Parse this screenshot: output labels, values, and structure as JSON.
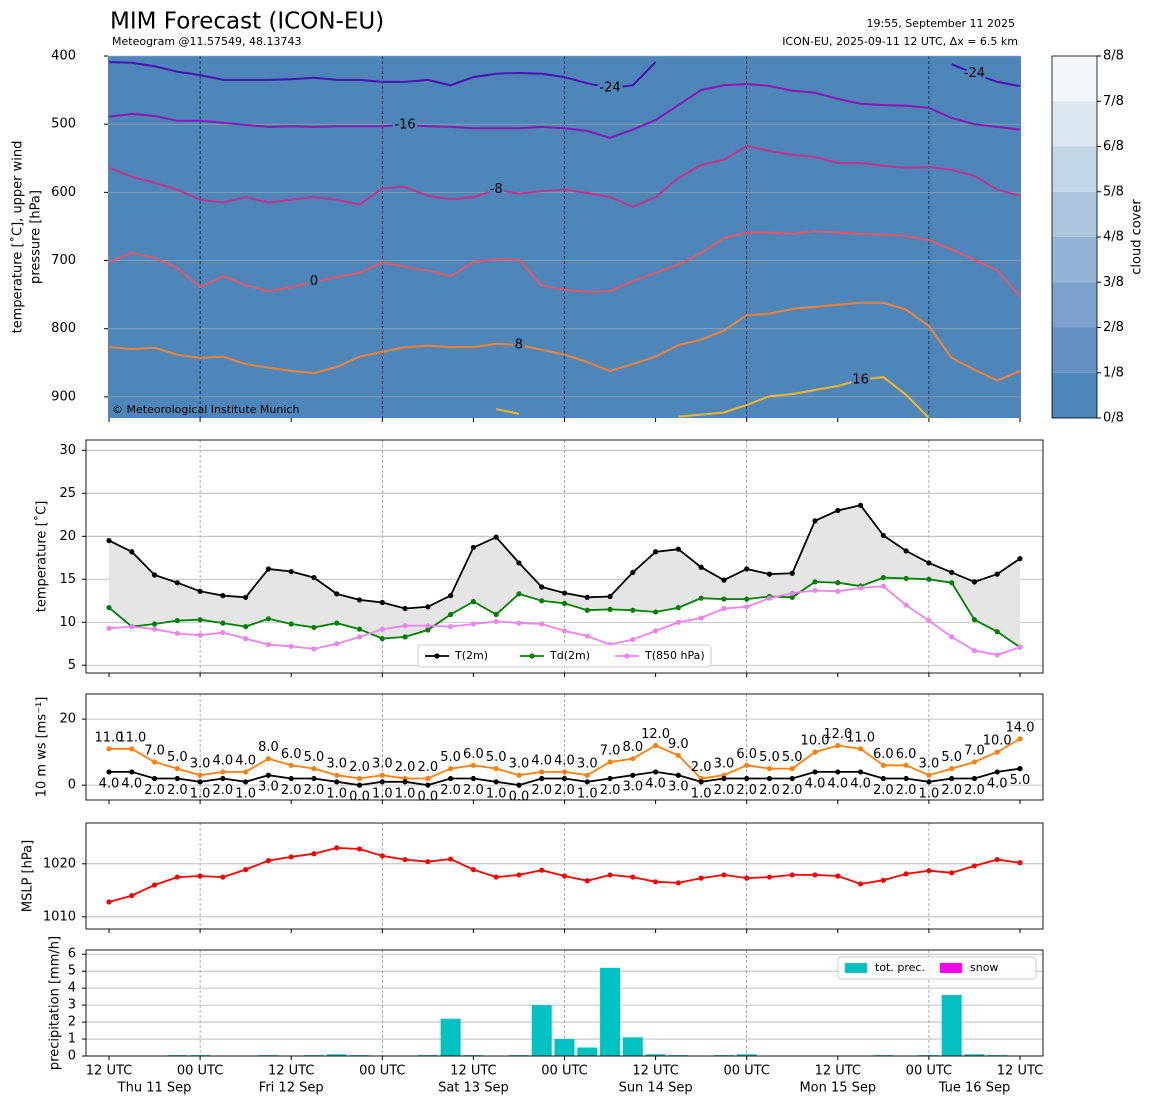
{
  "chart_data": [
    {
      "type": "contour",
      "title": "MIM Forecast (ICON-EU)",
      "subtitle": "Meteogram @11.57549, 48.13743",
      "annotations": [
        "19:55, September 11 2025",
        "ICON-EU, 2025-09-11 12 UTC, Δx = 6.5 km",
        "© Meteorological Institute Munich"
      ],
      "ylabel": [
        "temperature [˚C], upper wind",
        "pressure [hPa]"
      ],
      "ylim": [
        931,
        400
      ],
      "yticks": [
        400,
        500,
        600,
        700,
        800,
        900
      ],
      "grid": true,
      "background": "#4e86ba",
      "series": [
        {
          "name": "-24",
          "color": "#4b0fb4",
          "values": [
            409,
            410,
            415,
            423,
            428,
            435,
            435,
            435,
            434,
            432,
            435,
            435,
            438,
            438,
            435,
            443,
            431,
            426,
            425,
            426,
            431,
            440,
            447,
            443,
            409,
            null,
            null,
            null,
            null,
            null,
            null,
            null,
            null,
            null,
            null,
            null,
            null,
            412,
            426,
            438,
            444
          ]
        },
        {
          "name": "-16",
          "color": "#8a18b4",
          "values": [
            489,
            485,
            488,
            495,
            495,
            498,
            501,
            504,
            503,
            504,
            503,
            503,
            503,
            501,
            503,
            504,
            506,
            506,
            506,
            504,
            506,
            510,
            520,
            508,
            494,
            472,
            450,
            443,
            441,
            444,
            451,
            454,
            463,
            470,
            472,
            473,
            476,
            491,
            500,
            504,
            508
          ]
        },
        {
          "name": "-8",
          "color": "#c2338f",
          "values": [
            564,
            577,
            586,
            596,
            611,
            615,
            607,
            615,
            611,
            607,
            611,
            618,
            594,
            592,
            605,
            610,
            607,
            596,
            602,
            598,
            596,
            601,
            607,
            621,
            607,
            579,
            560,
            552,
            532,
            539,
            545,
            548,
            557,
            557,
            561,
            564,
            563,
            567,
            576,
            596,
            605
          ]
        },
        {
          "name": "0",
          "color": "#e2586a",
          "values": [
            702,
            689,
            696,
            711,
            739,
            723,
            736,
            745,
            739,
            731,
            724,
            718,
            703,
            709,
            715,
            723,
            702,
            698,
            699,
            737,
            743,
            746,
            745,
            730,
            718,
            706,
            689,
            667,
            659,
            659,
            661,
            657,
            659,
            661,
            662,
            664,
            670,
            684,
            699,
            714,
            753
          ]
        },
        {
          "name": "8",
          "color": "#f08238",
          "values": [
            827,
            830,
            828,
            838,
            843,
            841,
            852,
            857,
            862,
            865,
            856,
            841,
            834,
            827,
            825,
            827,
            827,
            822,
            824,
            831,
            838,
            849,
            862,
            852,
            841,
            824,
            816,
            803,
            780,
            778,
            771,
            768,
            765,
            762,
            762,
            772,
            796,
            843,
            860,
            876,
            862
          ]
        },
        {
          "name": "16",
          "color": "#f4b624",
          "values": [
            null,
            null,
            null,
            null,
            null,
            null,
            null,
            null,
            null,
            null,
            null,
            null,
            null,
            null,
            null,
            null,
            null,
            918,
            925,
            null,
            null,
            null,
            null,
            null,
            null,
            929,
            926,
            923,
            912,
            899,
            896,
            890,
            884,
            875,
            871,
            897,
            931,
            null,
            null,
            null,
            null
          ]
        }
      ],
      "colorbar": {
        "label": "cloud cover",
        "ticks": [
          {
            "value": 0,
            "label": "0/8"
          },
          {
            "value": 1,
            "label": "1/8"
          },
          {
            "value": 2,
            "label": "2/8"
          },
          {
            "value": 3,
            "label": "3/8"
          },
          {
            "value": 4,
            "label": "4/8"
          },
          {
            "value": 5,
            "label": "5/8"
          },
          {
            "value": 6,
            "label": "6/8"
          },
          {
            "value": 7,
            "label": "7/8"
          },
          {
            "value": 8,
            "label": "8/8"
          }
        ],
        "colors": [
          "#4e86ba",
          "#6290c0",
          "#7aa2ca",
          "#93b4d4",
          "#abc5dd",
          "#c3d6e6",
          "#dbe6ef",
          "#f1f6fa"
        ]
      }
    },
    {
      "type": "line",
      "ylabel": "temperature [˚C]",
      "ylim": [
        4.1,
        31.2
      ],
      "yticks": [
        5,
        10,
        15,
        20,
        25,
        30
      ],
      "grid": true,
      "legend": "lower center",
      "fill_color": "#e5e5e5",
      "series": [
        {
          "name": "T(2m)",
          "color": "#000000",
          "values": [
            19.5,
            18.2,
            15.5,
            14.6,
            13.6,
            13.1,
            12.9,
            16.2,
            15.9,
            15.2,
            13.3,
            12.6,
            12.3,
            11.6,
            11.8,
            13.1,
            18.7,
            19.9,
            16.9,
            14.1,
            13.4,
            12.9,
            13.0,
            15.8,
            18.2,
            18.5,
            16.4,
            14.9,
            16.2,
            15.6,
            15.7,
            21.8,
            23.0,
            23.6,
            20.1,
            18.3,
            16.9,
            15.8,
            14.7,
            15.6,
            17.4
          ]
        },
        {
          "name": "Td(2m)",
          "color": "#008000",
          "values": [
            11.7,
            9.5,
            9.8,
            10.2,
            10.3,
            9.9,
            9.5,
            10.4,
            9.8,
            9.4,
            9.9,
            9.2,
            8.1,
            8.3,
            9.1,
            10.9,
            12.4,
            10.9,
            13.3,
            12.5,
            12.2,
            11.4,
            11.5,
            11.4,
            11.2,
            11.7,
            12.8,
            12.7,
            12.7,
            13.0,
            12.9,
            14.7,
            14.6,
            14.2,
            15.2,
            15.1,
            15.0,
            14.6,
            10.3,
            8.9,
            7.1
          ]
        },
        {
          "name": "T(850 hPa)",
          "color": "#ee82ee",
          "values": [
            9.3,
            9.5,
            9.2,
            8.7,
            8.5,
            8.8,
            8.1,
            7.4,
            7.2,
            6.9,
            7.5,
            8.3,
            9.2,
            9.6,
            9.6,
            9.5,
            9.8,
            10.1,
            9.9,
            9.8,
            9.0,
            8.4,
            7.4,
            8.0,
            9.0,
            10.0,
            10.5,
            11.6,
            11.8,
            12.8,
            13.4,
            13.7,
            13.6,
            14.0,
            14.2,
            12.0,
            10.2,
            8.3,
            6.7,
            6.2,
            7.1
          ]
        }
      ]
    },
    {
      "type": "line",
      "ylabel": "10 m ws [ms⁻¹]",
      "ylim": [
        -4.5,
        27.6
      ],
      "yticks": [
        0,
        20
      ],
      "grid": true,
      "series": [
        {
          "color": "#ff7f0e",
          "values": [
            11,
            11,
            7,
            5,
            3,
            4,
            4,
            8,
            6,
            5,
            3,
            2,
            3,
            2,
            2,
            5,
            6,
            5,
            3,
            4,
            4,
            3,
            7,
            8,
            12,
            9,
            2,
            3,
            6,
            5,
            5,
            10,
            12,
            11,
            6,
            6,
            3,
            5,
            7,
            10,
            14
          ],
          "value_labels": [
            "11.0",
            "11.0",
            "7.0",
            "5.0",
            "3.0",
            "4.0",
            "4.0",
            "8.0",
            "6.0",
            "5.0",
            "3.0",
            "2.0",
            "3.0",
            "2.0",
            "2.0",
            "5.0",
            "6.0",
            "5.0",
            "3.0",
            "4.0",
            "4.0",
            "3.0",
            "7.0",
            "8.0",
            "12.0",
            "9.0",
            "2.0",
            "3.0",
            "6.0",
            "5.0",
            "5.0",
            "10.0",
            "12.0",
            "11.0",
            "6.0",
            "6.0",
            "3.0",
            "5.0",
            "7.0",
            "10.0",
            "14.0"
          ]
        },
        {
          "color": "#000000",
          "values": [
            4,
            4,
            2,
            2,
            1,
            2,
            1,
            3,
            2,
            2,
            1,
            0,
            1,
            1,
            0,
            2,
            2,
            1,
            0,
            2,
            2,
            1,
            2,
            3,
            4,
            3,
            1,
            2,
            2,
            2,
            2,
            4,
            4,
            4,
            2,
            2,
            1,
            2,
            2,
            4,
            5
          ],
          "value_labels": [
            "4.0",
            "4.0",
            "2.0",
            "2.0",
            "1.0",
            "2.0",
            "1.0",
            "3.0",
            "2.0",
            "2.0",
            "1.0",
            "0.0",
            "1.0",
            "1.0",
            "0.0",
            "2.0",
            "2.0",
            "1.0",
            "0.0",
            "2.0",
            "2.0",
            "1.0",
            "2.0",
            "3.0",
            "4.0",
            "3.0",
            "1.0",
            "2.0",
            "2.0",
            "2.0",
            "2.0",
            "4.0",
            "4.0",
            "4.0",
            "2.0",
            "2.0",
            "1.0",
            "2.0",
            "2.0",
            "4.0",
            "5.0"
          ]
        }
      ]
    },
    {
      "type": "line",
      "ylabel": "MSLP [hPa]",
      "ylim": [
        1007.7,
        1027.7
      ],
      "yticks": [
        1010,
        1020
      ],
      "grid": true,
      "series": [
        {
          "color": "#ff0000",
          "values": [
            1012.8,
            1014.0,
            1016.0,
            1017.5,
            1017.7,
            1017.5,
            1018.9,
            1020.6,
            1021.3,
            1021.9,
            1023.0,
            1022.8,
            1021.5,
            1020.8,
            1020.4,
            1020.9,
            1018.9,
            1017.5,
            1017.9,
            1018.8,
            1017.7,
            1016.8,
            1017.9,
            1017.5,
            1016.6,
            1016.4,
            1017.3,
            1017.9,
            1017.3,
            1017.5,
            1017.9,
            1017.9,
            1017.7,
            1016.2,
            1016.9,
            1018.1,
            1018.7,
            1018.3,
            1019.6,
            1020.8,
            1020.2
          ]
        }
      ]
    },
    {
      "type": "bar",
      "ylabel": "precipitation [mm/h]",
      "ylim": [
        0,
        6.25
      ],
      "yticks": [
        0,
        1,
        2,
        3,
        4,
        5,
        6
      ],
      "grid": true,
      "legend": "upper right",
      "categories": [
        "12 UTC",
        null,
        null,
        null,
        "00 UTC",
        null,
        null,
        null,
        "12 UTC",
        null,
        null,
        null,
        "00 UTC",
        null,
        null,
        null,
        "12 UTC",
        null,
        null,
        null,
        "00 UTC",
        null,
        null,
        null,
        "12 UTC",
        null,
        null,
        null,
        "00 UTC",
        null,
        null,
        null,
        "12 UTC",
        null,
        null,
        null,
        "00 UTC",
        null,
        null,
        null,
        "12 UTC"
      ],
      "x_sublabels": [
        null,
        null,
        "Thu 11 Sep",
        null,
        null,
        null,
        null,
        null,
        "Fri 12 Sep",
        null,
        null,
        null,
        null,
        null,
        null,
        null,
        "Sat 13 Sep",
        null,
        null,
        null,
        null,
        null,
        null,
        null,
        "Sun 14 Sep",
        null,
        null,
        null,
        null,
        null,
        null,
        null,
        "Mon 15 Sep",
        null,
        null,
        null,
        null,
        null,
        "Tue 16 Sep",
        null,
        null
      ],
      "series": [
        {
          "name": "tot. prec.",
          "color": "#00c2c2",
          "values": [
            0,
            0,
            0,
            0.05,
            0.05,
            0,
            0,
            0.05,
            0,
            0.05,
            0.1,
            0.05,
            0,
            0,
            0.05,
            2.2,
            0.05,
            0,
            0.05,
            3.0,
            1.0,
            0.5,
            5.2,
            1.1,
            0.1,
            0.05,
            0,
            0.05,
            0.1,
            0,
            0,
            0,
            0,
            0,
            0.05,
            0,
            0.05,
            3.6,
            0.1,
            0.05,
            0
          ]
        },
        {
          "name": "snow",
          "color": "#ff00ff",
          "values": [
            0,
            0,
            0,
            0,
            0,
            0,
            0,
            0,
            0,
            0,
            0,
            0,
            0,
            0,
            0,
            0,
            0,
            0,
            0,
            0,
            0,
            0,
            0,
            0,
            0,
            0,
            0,
            0,
            0,
            0,
            0,
            0,
            0,
            0,
            0,
            0,
            0,
            0,
            0,
            0,
            0
          ]
        }
      ]
    }
  ]
}
